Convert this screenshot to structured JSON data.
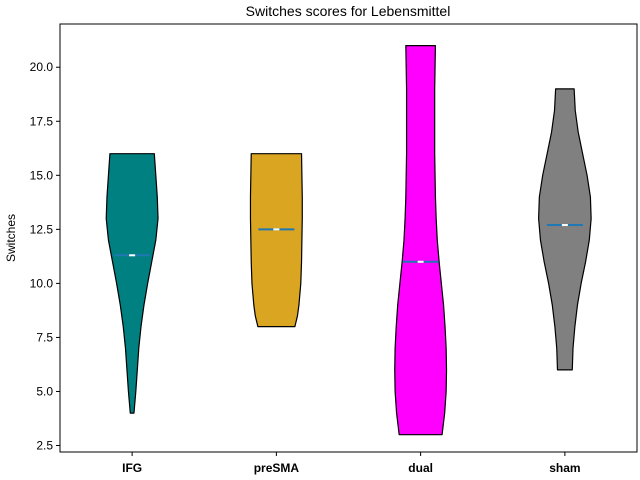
{
  "chart_data": {
    "type": "violin",
    "title": "Switches scores for Lebensmittel",
    "xlabel": "",
    "ylabel": "Switches",
    "ylim": [
      2.2,
      22.0
    ],
    "yticks": [
      2.5,
      5.0,
      7.5,
      10.0,
      12.5,
      15.0,
      17.5,
      20.0
    ],
    "ytick_labels": [
      "2.5",
      "5.0",
      "7.5",
      "10.0",
      "12.5",
      "15.0",
      "17.5",
      "20.0"
    ],
    "grid": false,
    "categories": [
      "IFG",
      "preSMA",
      "dual",
      "sham"
    ],
    "series": [
      {
        "category": "IFG",
        "color": "#008080",
        "min": 4,
        "max": 16,
        "mean": 11.3,
        "median": 11.3,
        "density": [
          [
            4.0,
            0.05
          ],
          [
            5.0,
            0.1
          ],
          [
            6.0,
            0.14
          ],
          [
            7.0,
            0.18
          ],
          [
            8.0,
            0.24
          ],
          [
            9.0,
            0.32
          ],
          [
            10.0,
            0.42
          ],
          [
            11.0,
            0.53
          ],
          [
            12.0,
            0.64
          ],
          [
            13.0,
            0.7
          ],
          [
            14.0,
            0.68
          ],
          [
            15.0,
            0.64
          ],
          [
            16.0,
            0.6
          ]
        ]
      },
      {
        "category": "preSMA",
        "color": "#DAA520",
        "min": 8,
        "max": 16,
        "mean": 12.5,
        "median": 12.5,
        "density": [
          [
            8.0,
            0.5
          ],
          [
            8.5,
            0.57
          ],
          [
            9.0,
            0.61
          ],
          [
            10.0,
            0.66
          ],
          [
            11.0,
            0.68
          ],
          [
            12.0,
            0.69
          ],
          [
            13.0,
            0.7
          ],
          [
            14.0,
            0.7
          ],
          [
            15.0,
            0.69
          ],
          [
            16.0,
            0.68
          ]
        ]
      },
      {
        "category": "dual",
        "color": "#FF00FF",
        "min": 3,
        "max": 21,
        "mean": 11.0,
        "median": 11.0,
        "density": [
          [
            3.0,
            0.58
          ],
          [
            4.0,
            0.65
          ],
          [
            5.0,
            0.69
          ],
          [
            6.0,
            0.7
          ],
          [
            7.0,
            0.69
          ],
          [
            8.0,
            0.66
          ],
          [
            9.0,
            0.62
          ],
          [
            10.0,
            0.56
          ],
          [
            11.0,
            0.5
          ],
          [
            12.0,
            0.45
          ],
          [
            13.0,
            0.42
          ],
          [
            14.0,
            0.4
          ],
          [
            15.0,
            0.39
          ],
          [
            16.0,
            0.38
          ],
          [
            17.0,
            0.38
          ],
          [
            18.0,
            0.38
          ],
          [
            19.0,
            0.38
          ],
          [
            20.0,
            0.39
          ],
          [
            21.0,
            0.4
          ]
        ]
      },
      {
        "category": "sham",
        "color": "#808080",
        "min": 6,
        "max": 19,
        "mean": 12.7,
        "median": 12.7,
        "density": [
          [
            6.0,
            0.2
          ],
          [
            7.0,
            0.22
          ],
          [
            8.0,
            0.27
          ],
          [
            9.0,
            0.34
          ],
          [
            10.0,
            0.44
          ],
          [
            11.0,
            0.56
          ],
          [
            12.0,
            0.66
          ],
          [
            13.0,
            0.71
          ],
          [
            14.0,
            0.69
          ],
          [
            15.0,
            0.6
          ],
          [
            16.0,
            0.48
          ],
          [
            17.0,
            0.36
          ],
          [
            18.0,
            0.28
          ],
          [
            19.0,
            0.25
          ]
        ]
      }
    ]
  }
}
